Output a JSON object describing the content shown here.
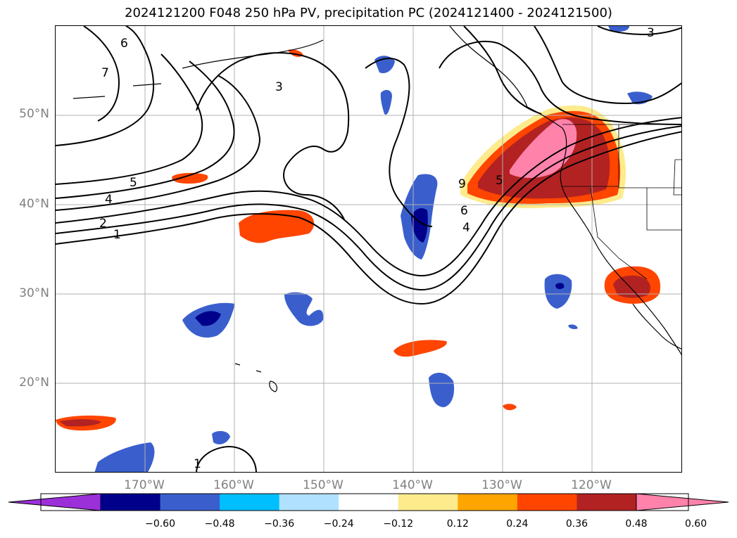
{
  "title": "2024121200 F048 250 hPa PV, precipitation PC (2024121400 - 2024121500)",
  "map": {
    "lat_range": [
      10,
      60
    ],
    "lon_range": [
      -180,
      -110
    ],
    "lat_labels": [
      "50°N",
      "40°N",
      "30°N",
      "20°N"
    ],
    "lon_labels": [
      "170°W",
      "160°W",
      "150°W",
      "140°W",
      "130°W",
      "120°W"
    ],
    "pv_contour_labels": [
      "6",
      "7",
      "3",
      "3",
      "5",
      "4",
      "2",
      "1",
      "5",
      "6",
      "4",
      "9",
      "1"
    ],
    "grid": true
  },
  "colorbar": {
    "colors": [
      "#9b30d9",
      "#00008b",
      "#3a5fcd",
      "#00bfff",
      "#b0e2ff",
      "#ffffff",
      "#fdeb8c",
      "#ffa500",
      "#ff4500",
      "#b22222",
      "#ff82ab"
    ],
    "tick_labels": [
      "−0.60",
      "−0.48",
      "−0.36",
      "−0.24",
      "−0.12",
      "0.12",
      "0.24",
      "0.36",
      "0.48",
      "0.60"
    ]
  }
}
